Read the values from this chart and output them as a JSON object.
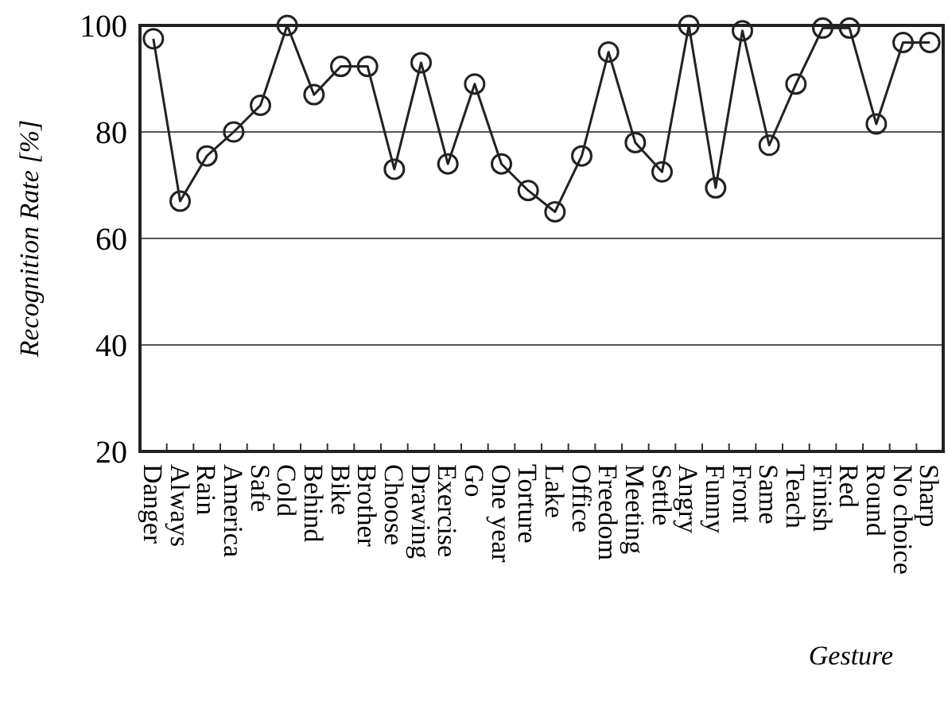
{
  "chart_data": {
    "type": "line",
    "xlabel": "Gesture",
    "ylabel": "Recognition Rate [%]",
    "categories": [
      "Danger",
      "Always",
      "Rain",
      "America",
      "Safe",
      "Cold",
      "Behind",
      "Bike",
      "Brother",
      "Choose",
      "Drawing",
      "Exercise",
      "Go",
      "One year",
      "Torture",
      "Lake",
      "Office",
      "Freedom",
      "Meeting",
      "Settle",
      "Angry",
      "Funny",
      "Front",
      "Same",
      "Teach",
      "Finish",
      "Red",
      "Round",
      "No choice",
      "Sharp"
    ],
    "series": [
      {
        "color": "#222222",
        "values": [
          97.5,
          67,
          75.5,
          80,
          85,
          100,
          87,
          92.3,
          92.3,
          73,
          93,
          74,
          89,
          74,
          69,
          65,
          75.5,
          95,
          78,
          72.5,
          100,
          69.5,
          99,
          77.5,
          89,
          99.5,
          99.5,
          81.5,
          96.8,
          96.8
        ]
      }
    ],
    "ylim": [
      20,
      100
    ],
    "yticks": [
      20,
      40,
      60,
      80,
      100
    ],
    "grid": "y",
    "marker": "circle",
    "line_style": "solid"
  }
}
